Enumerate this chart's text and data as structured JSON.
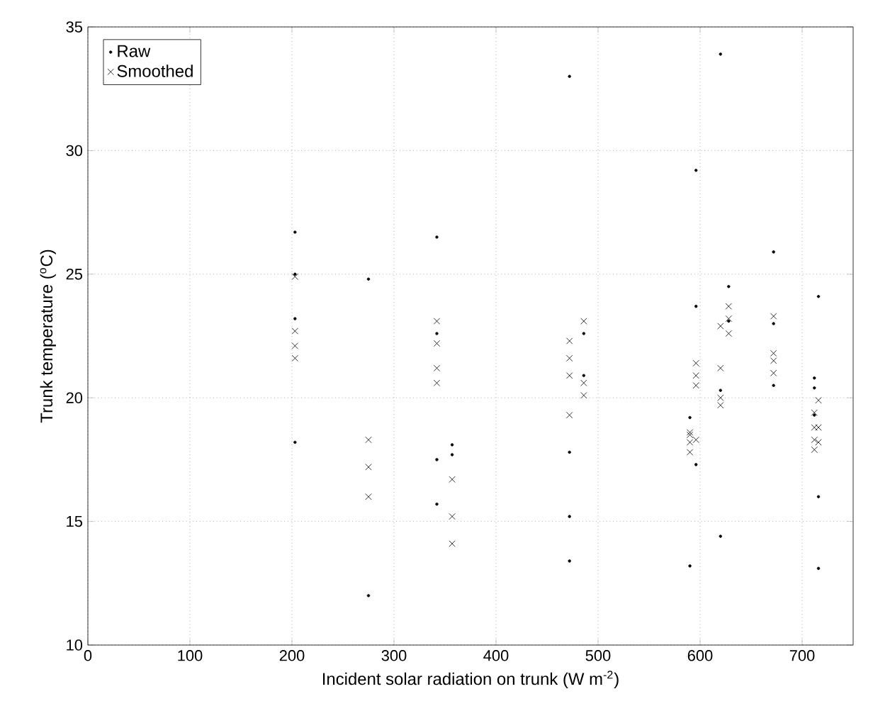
{
  "chart_data": {
    "type": "scatter",
    "xlabel": "Incident solar radiation on trunk (W m$^{-2}$)",
    "ylabel": "Trunk temperature ($^{o}$C)",
    "xlim": [
      0,
      750
    ],
    "ylim": [
      10,
      35
    ],
    "xticks": [
      0,
      100,
      200,
      300,
      400,
      500,
      600,
      700
    ],
    "yticks": [
      10,
      15,
      20,
      25,
      30,
      35
    ],
    "grid": true,
    "legend": "top left",
    "series": [
      {
        "name": "Raw",
        "color": "#000000",
        "marker": "circle",
        "x": [
          203,
          203,
          203,
          203,
          275,
          275,
          342,
          342,
          342,
          342,
          357,
          357,
          472,
          472,
          472,
          472,
          486,
          486,
          590,
          590,
          596,
          596,
          596,
          620,
          620,
          620,
          628,
          628,
          672,
          672,
          672,
          712,
          712,
          712,
          716,
          716,
          716
        ],
        "values": [
          26.7,
          25.0,
          23.2,
          18.2,
          24.8,
          12.0,
          26.5,
          22.6,
          17.5,
          15.7,
          18.1,
          17.7,
          33.0,
          17.8,
          15.2,
          13.4,
          22.6,
          20.9,
          19.2,
          13.2,
          29.2,
          23.7,
          17.3,
          33.9,
          14.4,
          20.3,
          24.5,
          23.1,
          25.9,
          23.0,
          20.5,
          20.8,
          20.4,
          19.3,
          24.1,
          16.0,
          13.1
        ]
      },
      {
        "name": "Smoothed",
        "color": "#000000",
        "marker": "cross",
        "x": [
          203,
          203,
          203,
          203,
          275,
          275,
          275,
          342,
          342,
          342,
          342,
          357,
          357,
          357,
          472,
          472,
          472,
          472,
          486,
          486,
          486,
          590,
          590,
          590,
          590,
          596,
          596,
          596,
          596,
          620,
          620,
          620,
          620,
          628,
          628,
          628,
          672,
          672,
          672,
          672,
          712,
          712,
          712,
          712,
          716,
          716,
          716
        ],
        "values": [
          24.9,
          22.7,
          22.1,
          21.6,
          18.3,
          17.2,
          16.0,
          23.1,
          22.2,
          21.2,
          20.6,
          16.7,
          15.2,
          14.1,
          22.3,
          21.6,
          20.9,
          19.3,
          23.1,
          20.6,
          20.1,
          18.6,
          18.2,
          17.8,
          18.5,
          21.4,
          20.9,
          20.5,
          18.3,
          22.9,
          21.2,
          20.0,
          19.7,
          23.7,
          23.2,
          22.6,
          23.3,
          21.8,
          21.5,
          21.0,
          19.4,
          18.8,
          17.9,
          18.3,
          19.9,
          18.8,
          18.2
        ]
      }
    ]
  }
}
